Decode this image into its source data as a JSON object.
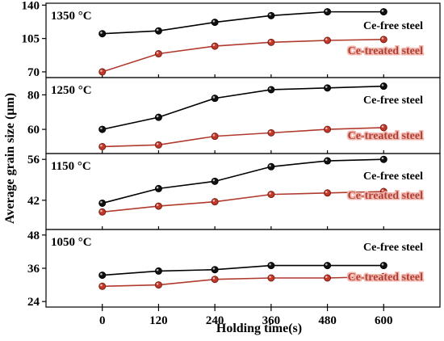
{
  "chart_data": {
    "type": "line",
    "x": [
      0,
      120,
      240,
      360,
      480,
      600
    ],
    "xlabel": "Holding time(s)",
    "ylabel": "Average grain size (μm)",
    "xlim": [
      -120,
      720
    ],
    "x_ticks": [
      "0",
      "120",
      "240",
      "360",
      "480",
      "600"
    ],
    "colors": {
      "ce_free": "#000000",
      "ce_treated": "#b03a2e",
      "legend_halo": "#f2b8b0"
    },
    "panels": [
      {
        "label": "1350 °C",
        "ylim": [
          64,
          142
        ],
        "y_ticks": [
          70,
          105,
          140
        ],
        "series": [
          {
            "name": "Ce-free steel",
            "color": "#000000",
            "values": [
              110,
              113,
              122,
              129,
              133,
              133
            ]
          },
          {
            "name": "Ce-treated steel",
            "color": "#b03a2e",
            "values": [
              70,
              89,
              97,
              101,
              103,
              104
            ]
          }
        ]
      },
      {
        "label": "1250 °C",
        "ylim": [
          46,
          90
        ],
        "y_ticks": [
          60,
          80
        ],
        "series": [
          {
            "name": "Ce-free steel",
            "color": "#000000",
            "values": [
              60,
              67,
              78,
              83,
              84,
              85
            ]
          },
          {
            "name": "Ce-treated steel",
            "color": "#b03a2e",
            "values": [
              50,
              51,
              56,
              58,
              60,
              61
            ]
          }
        ]
      },
      {
        "label": "1150 °C",
        "ylim": [
          32,
          58
        ],
        "y_ticks": [
          42,
          56
        ],
        "series": [
          {
            "name": "Ce-free steel",
            "color": "#000000",
            "values": [
              41,
              46,
              48.5,
              53.5,
              55.5,
              56
            ]
          },
          {
            "name": "Ce-treated steel",
            "color": "#b03a2e",
            "values": [
              38,
              40,
              41.5,
              44,
              44.5,
              45
            ]
          }
        ]
      },
      {
        "label": "1050 °C",
        "ylim": [
          22,
          50
        ],
        "y_ticks": [
          24,
          36,
          48
        ],
        "series": [
          {
            "name": "Ce-free steel",
            "color": "#000000",
            "values": [
              33.5,
              35,
              35.5,
              37,
              37,
              37
            ]
          },
          {
            "name": "Ce-treated steel",
            "color": "#b03a2e",
            "values": [
              29.5,
              30,
              32,
              32.5,
              32.5,
              33
            ]
          }
        ]
      }
    ]
  }
}
